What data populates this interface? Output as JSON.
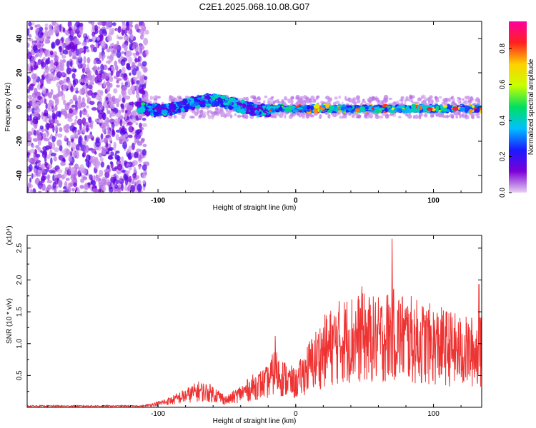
{
  "chart_data": [
    {
      "type": "heatmap",
      "title": "C2E1.2025.068.10.08.G07",
      "xlabel": "Height of straight line (km)",
      "ylabel": "Frequency (Hz)",
      "xlim": [
        -195,
        135
      ],
      "ylim": [
        -50,
        50
      ],
      "x_ticks": [
        "-100",
        "0",
        "100"
      ],
      "y_ticks": [
        "40",
        "20",
        "0",
        "-20",
        "-40"
      ],
      "colorbar": {
        "label": "Normalized spectral amplitude",
        "ticks": [
          "0.8",
          "0.6",
          "0.4",
          "0.2",
          "0.0"
        ],
        "range": [
          0,
          0.95
        ],
        "colors": [
          "#e8d0f0",
          "#7b00d8",
          "#1a1aff",
          "#00c0ff",
          "#00e060",
          "#c8ff00",
          "#ffd000",
          "#ff2020",
          "#ff00a0"
        ]
      },
      "noise_region_x": [
        -195,
        -112
      ],
      "signal_band_hz": [
        -6,
        6
      ],
      "band_segments": [
        {
          "x_start": -115,
          "x_end": -20,
          "center_hz": 1,
          "spread_hz": 6
        },
        {
          "x_start": -20,
          "x_end": 135,
          "center_hz": -1,
          "spread_hz": 3
        }
      ]
    },
    {
      "type": "line",
      "title": "",
      "xlabel": "Height of straight line (km)",
      "ylabel": "SNR (10 * v/v)",
      "y_scale_note": "(x10⁴)",
      "xlim": [
        -195,
        135
      ],
      "ylim": [
        0,
        2.7
      ],
      "x_ticks": [
        "-100",
        "0",
        "100"
      ],
      "y_ticks": [
        "2.5",
        "2.0",
        "1.5",
        "1.0",
        "0.5"
      ],
      "line_color": "#ee3333",
      "envelope": [
        {
          "x": -195,
          "y": 0.02
        },
        {
          "x": -110,
          "y": 0.03
        },
        {
          "x": -100,
          "y": 0.08
        },
        {
          "x": -90,
          "y": 0.15
        },
        {
          "x": -80,
          "y": 0.25
        },
        {
          "x": -70,
          "y": 0.35
        },
        {
          "x": -60,
          "y": 0.3
        },
        {
          "x": -50,
          "y": 0.15
        },
        {
          "x": -40,
          "y": 0.3
        },
        {
          "x": -30,
          "y": 0.45
        },
        {
          "x": -20,
          "y": 0.55
        },
        {
          "x": -15,
          "y": 0.8
        },
        {
          "x": -10,
          "y": 0.65
        },
        {
          "x": 0,
          "y": 0.5
        },
        {
          "x": 10,
          "y": 0.9
        },
        {
          "x": 20,
          "y": 1.2
        },
        {
          "x": 30,
          "y": 1.4
        },
        {
          "x": 40,
          "y": 1.5
        },
        {
          "x": 50,
          "y": 1.5
        },
        {
          "x": 60,
          "y": 1.45
        },
        {
          "x": 70,
          "y": 1.6
        },
        {
          "x": 80,
          "y": 1.5
        },
        {
          "x": 90,
          "y": 1.4
        },
        {
          "x": 100,
          "y": 1.35
        },
        {
          "x": 110,
          "y": 1.3
        },
        {
          "x": 120,
          "y": 1.2
        },
        {
          "x": 135,
          "y": 1.2
        }
      ],
      "peaks": [
        {
          "x": 70,
          "y": 2.65
        },
        {
          "x": -15,
          "y": 1.12
        },
        {
          "x": 133,
          "y": 1.93
        },
        {
          "x": 48,
          "y": 1.9
        }
      ]
    }
  ]
}
